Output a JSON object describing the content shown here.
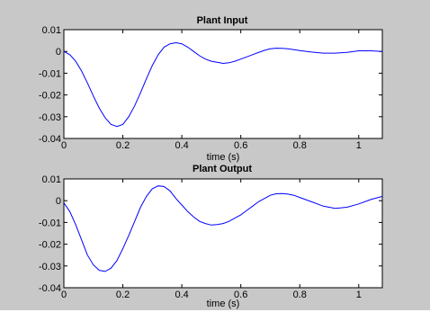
{
  "chart_data": [
    {
      "type": "line",
      "title": "Plant Input",
      "xlabel": "time (s)",
      "ylabel": "",
      "xlim": [
        0,
        1.08
      ],
      "ylim": [
        -0.04,
        0.01
      ],
      "xticks": [
        0,
        0.2,
        0.4,
        0.6,
        0.8,
        1
      ],
      "xtick_labels": [
        "0",
        "0.2",
        "0.4",
        "0.6",
        "0.8",
        "1"
      ],
      "yticks": [
        0.01,
        0,
        -0.01,
        -0.02,
        -0.03,
        -0.04
      ],
      "ytick_labels": [
        "0.01",
        "0",
        "-0.01",
        "-0.02",
        "-0.03",
        "-0.04"
      ],
      "grid": false,
      "line_color": "#0000ff",
      "series": [
        {
          "x": [
            0,
            0.02,
            0.04,
            0.06,
            0.08,
            0.1,
            0.12,
            0.14,
            0.16,
            0.18,
            0.2,
            0.22,
            0.24,
            0.26,
            0.28,
            0.3,
            0.32,
            0.34,
            0.36,
            0.38,
            0.4,
            0.42,
            0.44,
            0.46,
            0.48,
            0.5,
            0.52,
            0.54,
            0.56,
            0.58,
            0.6,
            0.62,
            0.64,
            0.66,
            0.68,
            0.7,
            0.72,
            0.74,
            0.76,
            0.78,
            0.8,
            0.84,
            0.88,
            0.92,
            0.96,
            1.0,
            1.04,
            1.08
          ],
          "y": [
            0,
            -0.0015,
            -0.0045,
            -0.009,
            -0.0145,
            -0.0205,
            -0.026,
            -0.0305,
            -0.0335,
            -0.0345,
            -0.0335,
            -0.03,
            -0.025,
            -0.019,
            -0.0125,
            -0.0065,
            -0.0015,
            0.002,
            0.0035,
            0.004,
            0.0035,
            0.002,
            0.0,
            -0.002,
            -0.0035,
            -0.0045,
            -0.005,
            -0.0055,
            -0.0052,
            -0.0045,
            -0.0035,
            -0.0025,
            -0.0015,
            -0.0005,
            0.0005,
            0.0012,
            0.0015,
            0.0014,
            0.0012,
            0.0008,
            0.0004,
            -0.0003,
            -0.0008,
            -0.0008,
            -0.0004,
            0.0003,
            0.0003,
            0.0
          ]
        }
      ]
    },
    {
      "type": "line",
      "title": "Plant Output",
      "xlabel": "time (s)",
      "ylabel": "",
      "xlim": [
        0,
        1.08
      ],
      "ylim": [
        -0.04,
        0.01
      ],
      "xticks": [
        0,
        0.2,
        0.4,
        0.6,
        0.8,
        1
      ],
      "xtick_labels": [
        "0",
        "0.2",
        "0.4",
        "0.6",
        "0.8",
        "1"
      ],
      "yticks": [
        0.01,
        0,
        -0.01,
        -0.02,
        -0.03,
        -0.04
      ],
      "ytick_labels": [
        "0.01",
        "0",
        "-0.01",
        "-0.02",
        "-0.03",
        "-0.04"
      ],
      "grid": false,
      "line_color": "#0000ff",
      "series": [
        {
          "x": [
            0,
            0.02,
            0.04,
            0.06,
            0.08,
            0.1,
            0.12,
            0.14,
            0.16,
            0.18,
            0.2,
            0.22,
            0.24,
            0.26,
            0.28,
            0.3,
            0.32,
            0.34,
            0.36,
            0.38,
            0.4,
            0.42,
            0.44,
            0.46,
            0.48,
            0.5,
            0.52,
            0.54,
            0.56,
            0.58,
            0.6,
            0.62,
            0.64,
            0.66,
            0.68,
            0.7,
            0.72,
            0.74,
            0.76,
            0.78,
            0.8,
            0.84,
            0.88,
            0.92,
            0.96,
            1.0,
            1.04,
            1.08
          ],
          "y": [
            -0.001,
            -0.005,
            -0.011,
            -0.018,
            -0.025,
            -0.0295,
            -0.032,
            -0.0325,
            -0.031,
            -0.0275,
            -0.022,
            -0.016,
            -0.0095,
            -0.003,
            0.002,
            0.0055,
            0.0068,
            0.0065,
            0.0045,
            0.001,
            -0.002,
            -0.005,
            -0.0075,
            -0.0095,
            -0.0105,
            -0.0112,
            -0.011,
            -0.0105,
            -0.0095,
            -0.008,
            -0.0065,
            -0.0045,
            -0.0025,
            -0.0005,
            0.001,
            0.0025,
            0.0032,
            0.0033,
            0.003,
            0.0025,
            0.0015,
            -0.0005,
            -0.0025,
            -0.0035,
            -0.003,
            -0.0015,
            0.0005,
            0.002
          ]
        }
      ]
    }
  ]
}
